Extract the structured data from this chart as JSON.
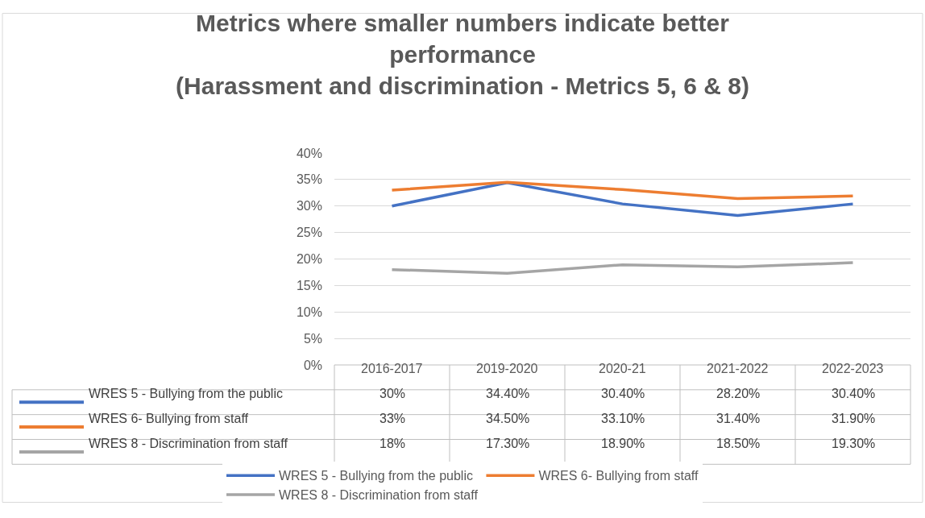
{
  "chart_data": {
    "type": "line",
    "title": "Metrics where smaller numbers indicate better\nperformance\n(Harassment and discrimination - Metrics 5, 6 & 8)",
    "categories": [
      "2016-2017",
      "2019-2020",
      "2020-21",
      "2021-2022",
      "2022-2023"
    ],
    "series": [
      {
        "name": "WRES 5 - Bullying from the public",
        "color": "#4472c4",
        "values": [
          30,
          34.4,
          30.4,
          28.2,
          30.4
        ],
        "value_labels": [
          "30%",
          "34.40%",
          "30.40%",
          "28.20%",
          "30.40%"
        ]
      },
      {
        "name": "WRES 6- Bullying from staff",
        "color": "#ed7d31",
        "values": [
          33,
          34.5,
          33.1,
          31.4,
          31.9
        ],
        "value_labels": [
          "33%",
          "34.50%",
          "33.10%",
          "31.40%",
          "31.90%"
        ]
      },
      {
        "name": "WRES 8 - Discrimination from staff",
        "color": "#a5a5a5",
        "values": [
          18,
          17.3,
          18.9,
          18.5,
          19.3
        ],
        "value_labels": [
          "18%",
          "17.30%",
          "18.90%",
          "18.50%",
          "19.30%"
        ]
      }
    ],
    "ylim": [
      0,
      40
    ],
    "yticks": [
      {
        "value": 0,
        "label": "0%"
      },
      {
        "value": 5,
        "label": "5%"
      },
      {
        "value": 10,
        "label": "10%"
      },
      {
        "value": 15,
        "label": "15%"
      },
      {
        "value": 20,
        "label": "20%"
      },
      {
        "value": 25,
        "label": "25%"
      },
      {
        "value": 30,
        "label": "30%"
      },
      {
        "value": 35,
        "label": "35%"
      },
      {
        "value": 40,
        "label": "40%"
      }
    ],
    "grid": "y",
    "legend": "bottom",
    "marker": "none",
    "line_style": "solid"
  }
}
